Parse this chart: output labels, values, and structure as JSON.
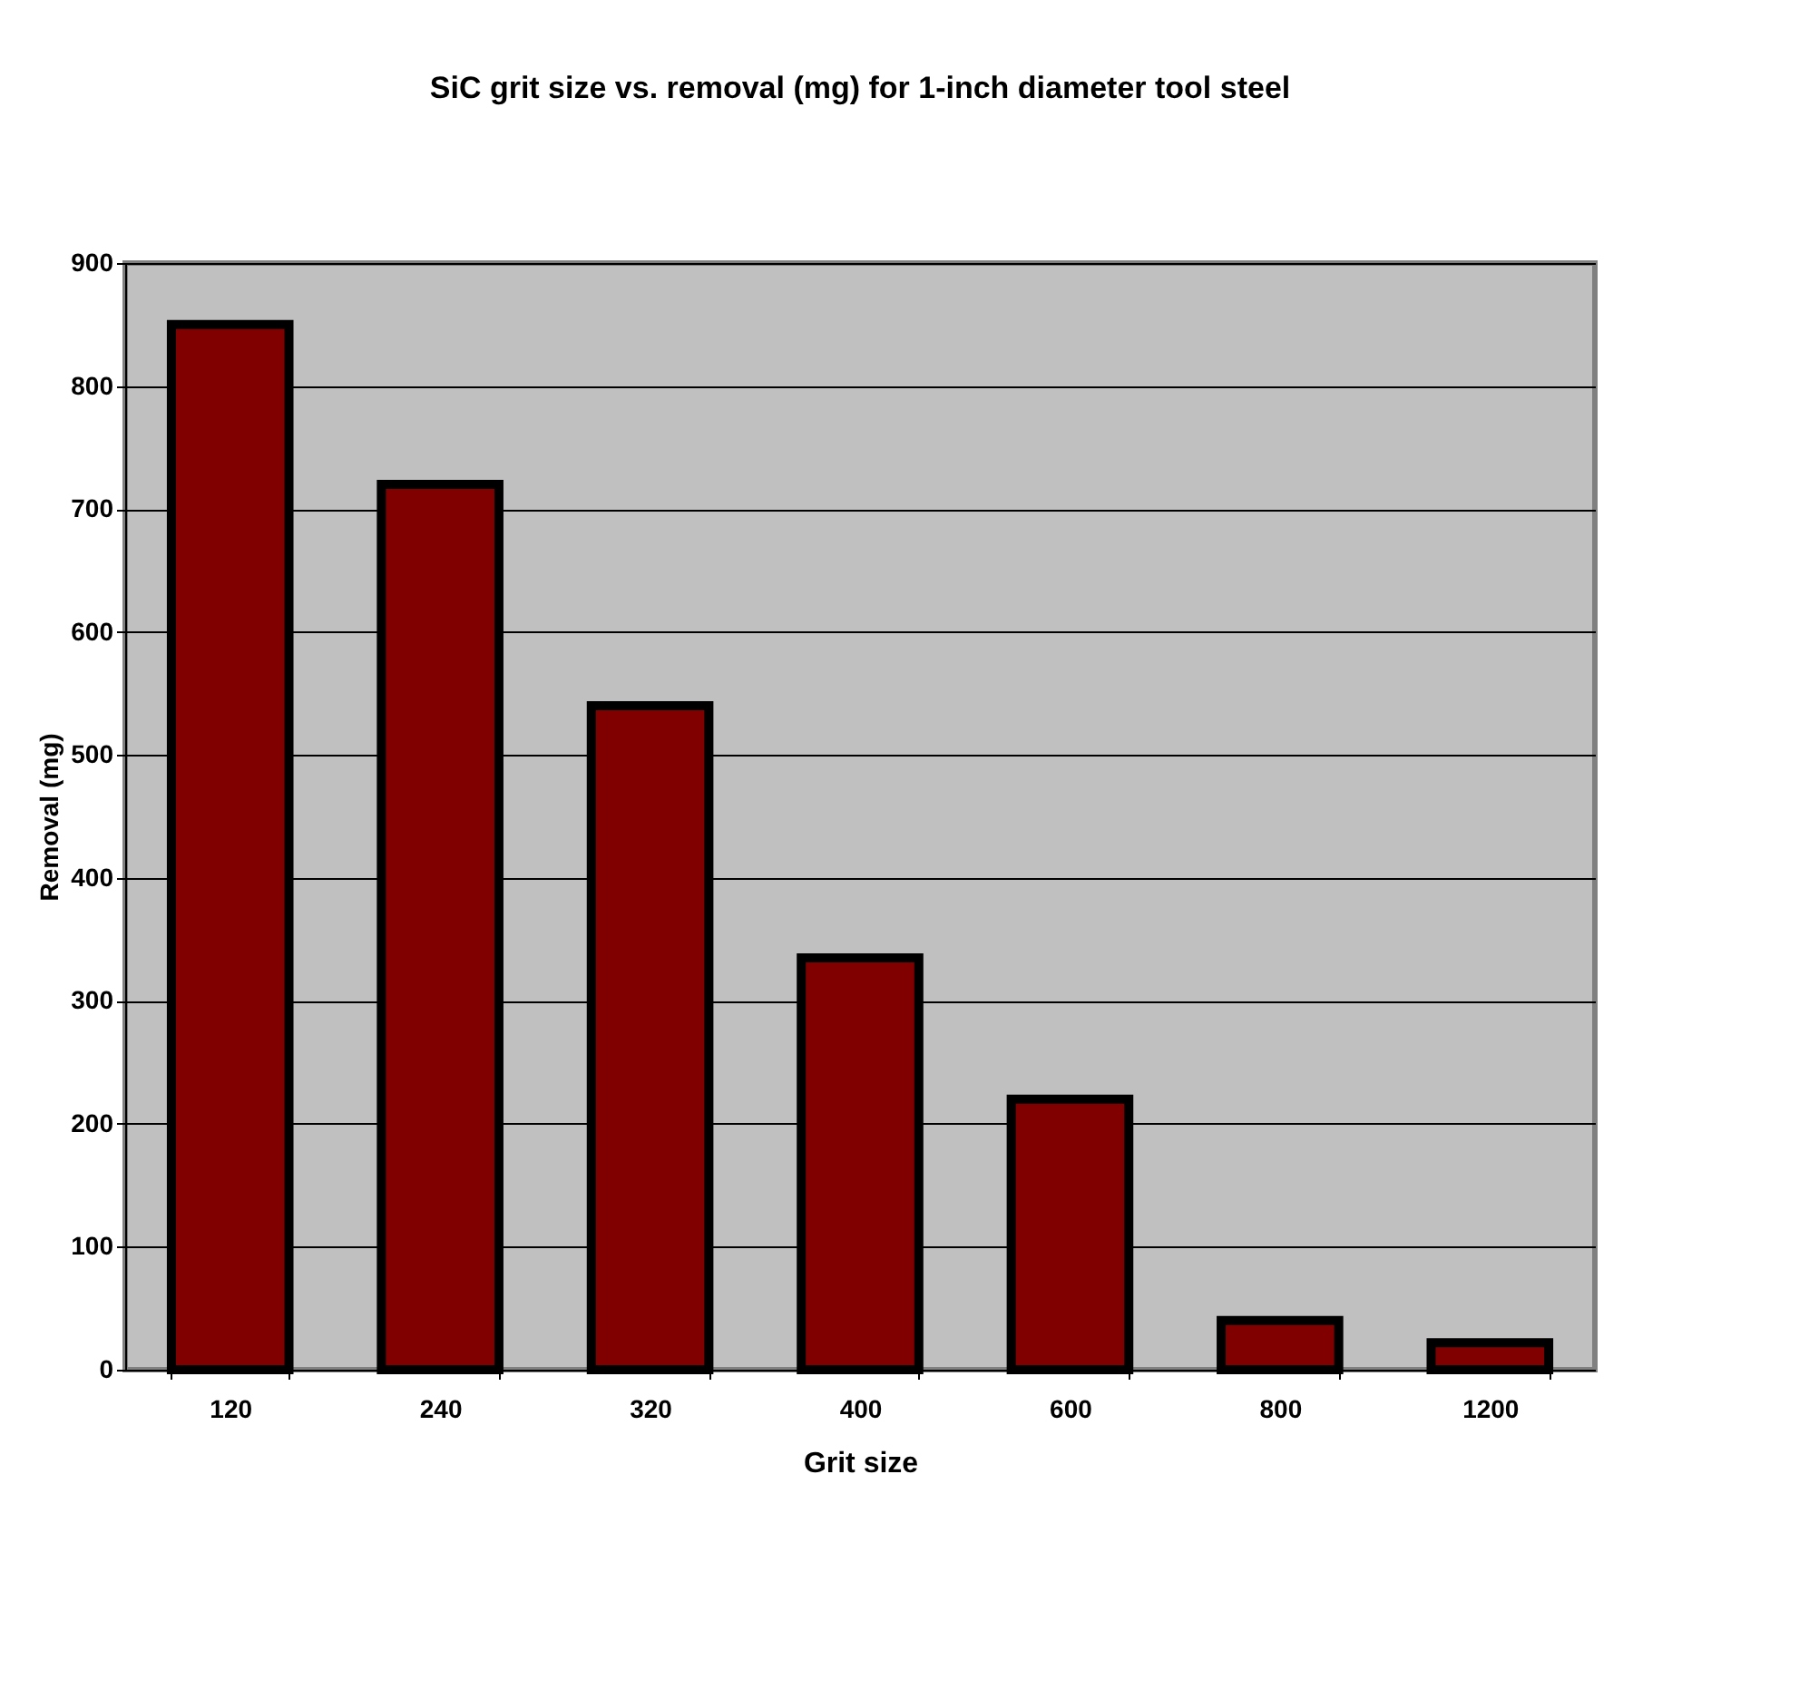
{
  "chart_data": {
    "type": "bar",
    "title": "SiC grit size vs. removal (mg) for 1-inch diameter tool steel",
    "xlabel": "Grit size",
    "ylabel": "Removal (mg)",
    "categories": [
      "120",
      "240",
      "320",
      "400",
      "600",
      "800",
      "1200"
    ],
    "values": [
      850,
      720,
      540,
      335,
      220,
      40,
      22
    ],
    "color": "#800000",
    "ylim": [
      0,
      900
    ],
    "yticks": [
      0,
      100,
      200,
      300,
      400,
      500,
      600,
      700,
      800,
      900
    ],
    "grid": "y"
  }
}
